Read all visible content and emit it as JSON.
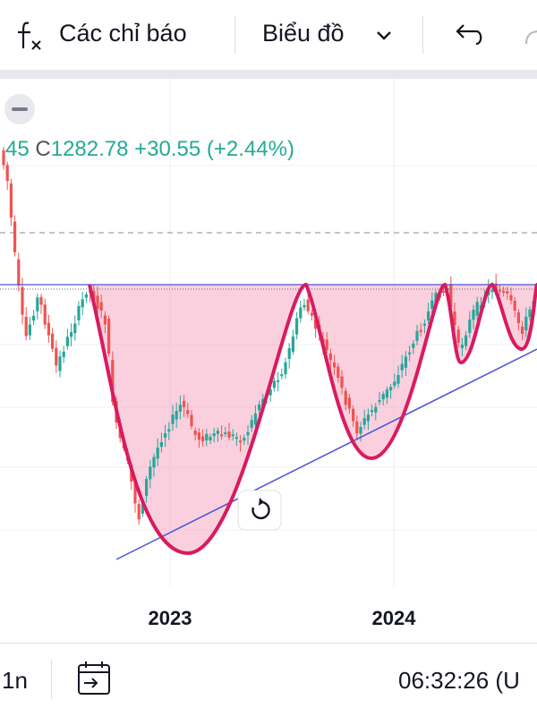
{
  "toolbar": {
    "indicators": "Các chỉ báo",
    "chart_type": "Biểu đồ"
  },
  "legend": {
    "previous_tail": "45",
    "close_label": "C",
    "close": "1282.78",
    "change": "+30.55",
    "change_percent": "(+2.44%)"
  },
  "x_axis": {
    "labels": [
      "2023",
      "2024"
    ]
  },
  "bottom_bar": {
    "interval": "1n",
    "time": "06:32:26 (U"
  }
}
